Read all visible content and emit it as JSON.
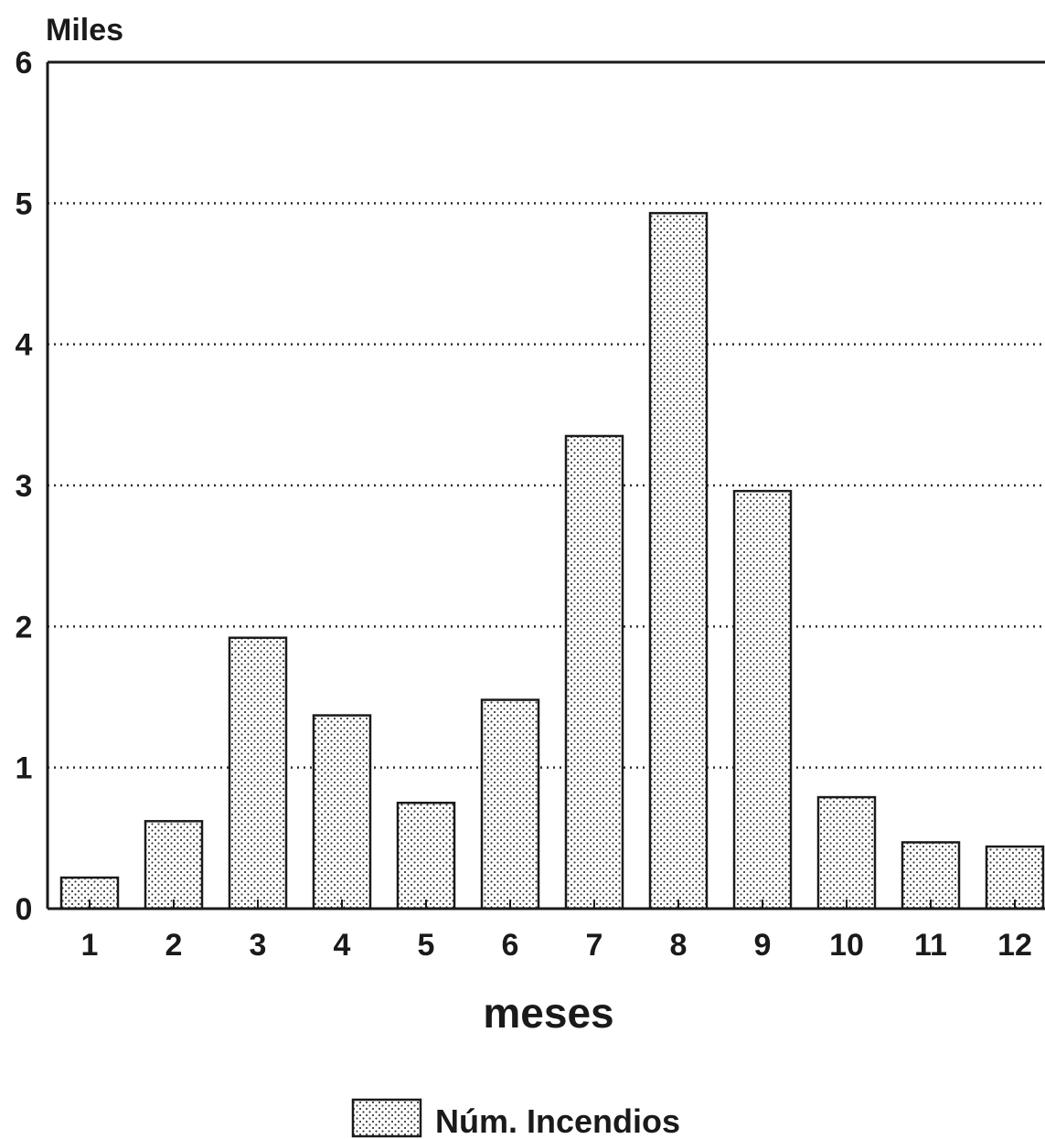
{
  "chart_data": {
    "type": "bar",
    "title": "",
    "unit_label": "Miles",
    "xlabel": "meses",
    "ylabel": "",
    "ylim": [
      0,
      6
    ],
    "yticks": [
      0,
      1,
      2,
      3,
      4,
      5,
      6
    ],
    "grid": "horizontal dotted at 1-5",
    "legend_position": "bottom-center",
    "categories": [
      "1",
      "2",
      "3",
      "4",
      "5",
      "6",
      "7",
      "8",
      "9",
      "10",
      "11",
      "12"
    ],
    "series": [
      {
        "name": "Núm. Incendios",
        "values": [
          0.22,
          0.62,
          1.92,
          1.37,
          0.75,
          1.48,
          3.35,
          4.93,
          2.96,
          0.79,
          0.47,
          0.44
        ],
        "fill": "dotted stipple pattern",
        "color": "#1a1a1a"
      }
    ]
  }
}
